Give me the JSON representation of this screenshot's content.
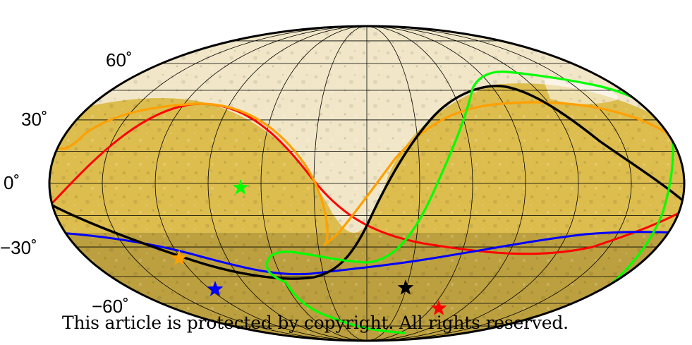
{
  "latitude_labels": {
    "lat_p60": "60˚",
    "lat_p30": "30˚",
    "lat_0": "0˚",
    "lat_m30": "−30˚",
    "lat_m60": "−60˚"
  },
  "copyright": "This article is protected by copyright. All rights reserved.",
  "colors": {
    "red": "#ff0000",
    "orange": "#ffa000",
    "blue": "#0000ff",
    "black": "#000000",
    "green": "#00ff00",
    "grid": "#000000",
    "surface_light": "#f1e7c8",
    "surface_gold": "#dcbd4e",
    "surface_dark": "#a28833"
  },
  "curves": [
    {
      "name": "red-curve",
      "color": "red"
    },
    {
      "name": "orange-curve",
      "color": "orange"
    },
    {
      "name": "blue-curve",
      "color": "blue"
    },
    {
      "name": "black-curve",
      "color": "black"
    },
    {
      "name": "green-curve",
      "color": "green"
    }
  ],
  "markers": [
    {
      "name": "green-star-marker",
      "color": "green"
    },
    {
      "name": "orange-star-marker",
      "color": "orange"
    },
    {
      "name": "blue-star-marker",
      "color": "blue"
    },
    {
      "name": "black-star-marker",
      "color": "black"
    },
    {
      "name": "red-star-marker",
      "color": "red"
    }
  ]
}
